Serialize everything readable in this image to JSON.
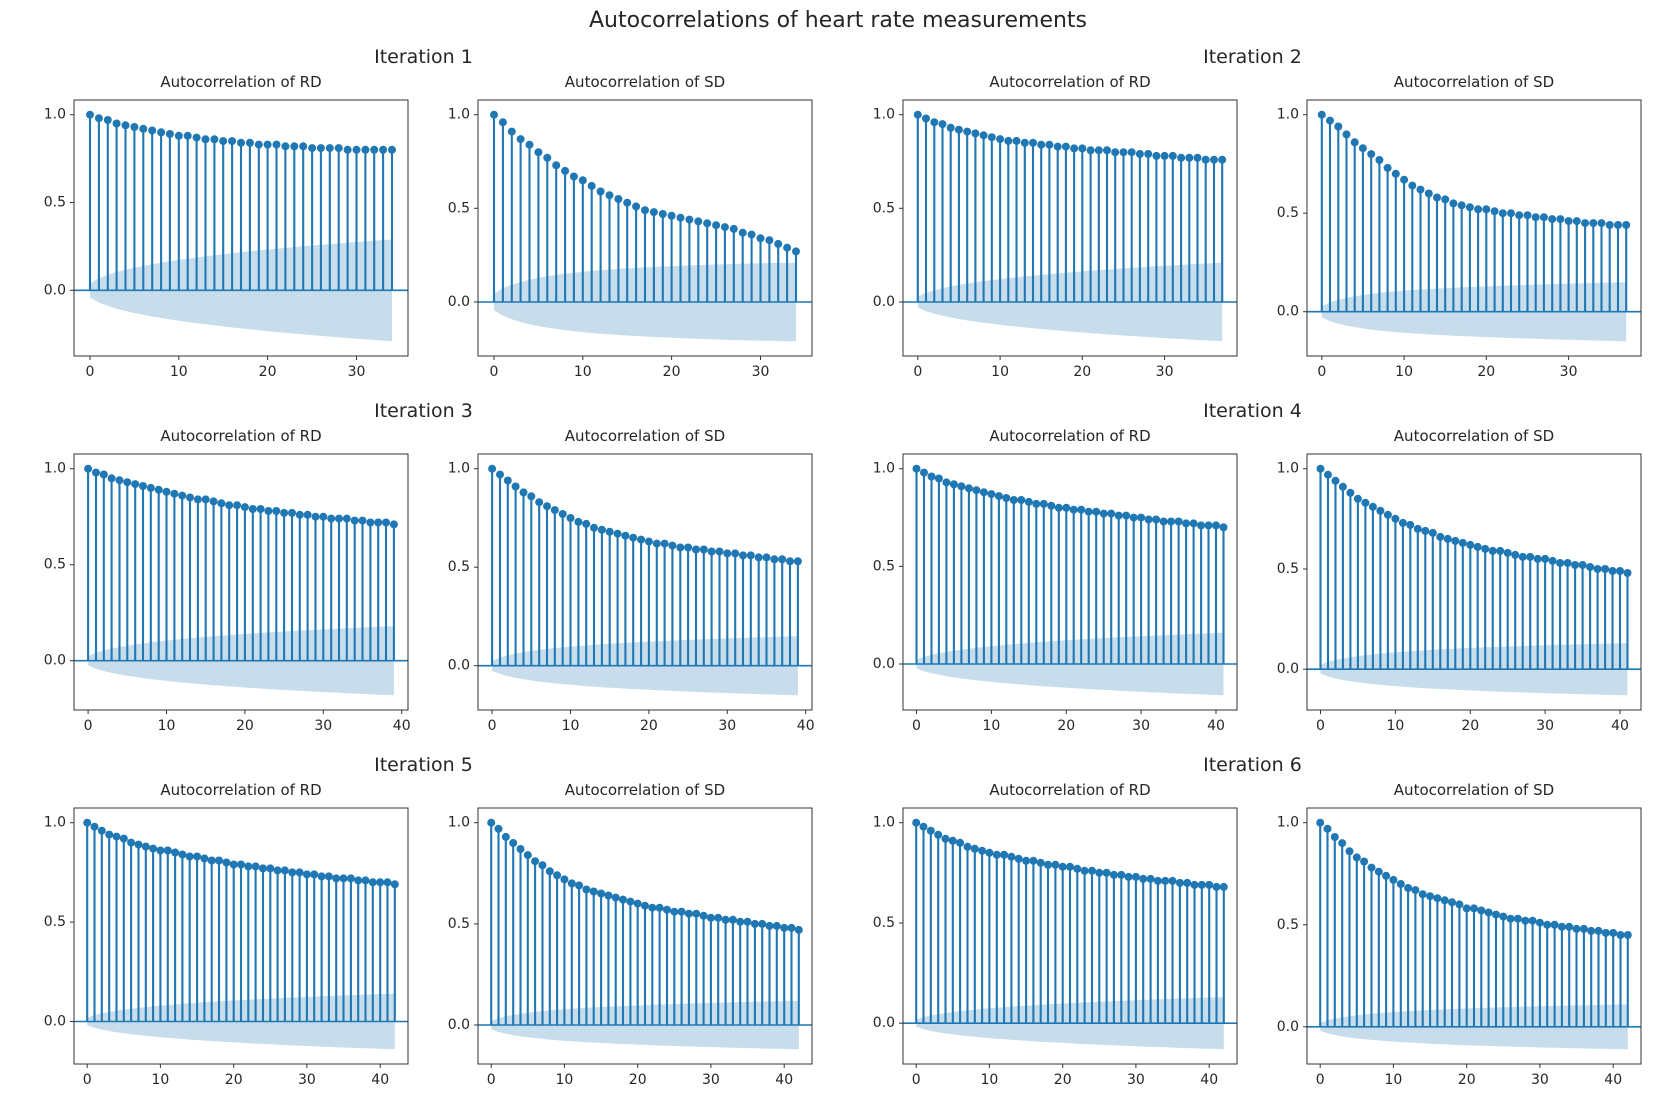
{
  "figure": {
    "title": "Autocorrelations of heart rate measurements"
  },
  "colors": {
    "accent": "#1f77b4",
    "band_fill": "#1f77b4",
    "band_opacity": 0.25,
    "spine": "#333333",
    "text": "#262626",
    "background": "#ffffff"
  },
  "axes": {
    "y_tick_labels": [
      "0.0",
      "0.5",
      "1.0"
    ],
    "y_tick_values": [
      0,
      0.5,
      1
    ]
  },
  "panels": [
    {
      "title": "Iteration 1",
      "charts": [
        0,
        1
      ]
    },
    {
      "title": "Iteration 2",
      "charts": [
        2,
        3
      ]
    },
    {
      "title": "Iteration 3",
      "charts": [
        4,
        5
      ]
    },
    {
      "title": "Iteration 4",
      "charts": [
        6,
        7
      ]
    },
    {
      "title": "Iteration 5",
      "charts": [
        8,
        9
      ]
    },
    {
      "title": "Iteration 6",
      "charts": [
        10,
        11
      ]
    }
  ],
  "chart_data": [
    {
      "type": "stem",
      "panel": "Iteration 1",
      "series": "RD",
      "title": "Autocorrelation of RD",
      "x_ticks": [
        0,
        10,
        20,
        30
      ],
      "y_ticks": [
        0,
        0.5,
        1
      ],
      "max_lag": 34,
      "band_end": 0.29,
      "acf": [
        1.0,
        0.98,
        0.97,
        0.95,
        0.94,
        0.93,
        0.92,
        0.91,
        0.9,
        0.89,
        0.88,
        0.88,
        0.87,
        0.86,
        0.86,
        0.85,
        0.85,
        0.84,
        0.84,
        0.83,
        0.83,
        0.83,
        0.82,
        0.82,
        0.82,
        0.81,
        0.81,
        0.81,
        0.81,
        0.8,
        0.8,
        0.8,
        0.8,
        0.8,
        0.8
      ]
    },
    {
      "type": "stem",
      "panel": "Iteration 1",
      "series": "SD",
      "title": "Autocorrelation of SD",
      "x_ticks": [
        0,
        10,
        20,
        30
      ],
      "y_ticks": [
        0,
        0.5,
        1
      ],
      "max_lag": 34,
      "band_end": 0.21,
      "acf": [
        1.0,
        0.96,
        0.91,
        0.87,
        0.84,
        0.8,
        0.77,
        0.73,
        0.7,
        0.67,
        0.65,
        0.62,
        0.59,
        0.57,
        0.55,
        0.53,
        0.51,
        0.49,
        0.48,
        0.47,
        0.46,
        0.45,
        0.44,
        0.43,
        0.42,
        0.41,
        0.4,
        0.39,
        0.37,
        0.36,
        0.34,
        0.33,
        0.31,
        0.29,
        0.27
      ]
    },
    {
      "type": "stem",
      "panel": "Iteration 2",
      "series": "RD",
      "title": "Autocorrelation of RD",
      "x_ticks": [
        0,
        10,
        20,
        30
      ],
      "y_ticks": [
        0,
        0.5,
        1
      ],
      "max_lag": 37,
      "band_end": 0.21,
      "acf": [
        1.0,
        0.98,
        0.96,
        0.95,
        0.93,
        0.92,
        0.91,
        0.9,
        0.89,
        0.88,
        0.87,
        0.86,
        0.86,
        0.85,
        0.85,
        0.84,
        0.84,
        0.83,
        0.83,
        0.82,
        0.82,
        0.81,
        0.81,
        0.81,
        0.8,
        0.8,
        0.8,
        0.79,
        0.79,
        0.78,
        0.78,
        0.78,
        0.77,
        0.77,
        0.77,
        0.76,
        0.76,
        0.76
      ]
    },
    {
      "type": "stem",
      "panel": "Iteration 2",
      "series": "SD",
      "title": "Autocorrelation of SD",
      "x_ticks": [
        0,
        10,
        20,
        30
      ],
      "y_ticks": [
        0,
        0.5,
        1
      ],
      "max_lag": 37,
      "band_end": 0.15,
      "acf": [
        1.0,
        0.97,
        0.94,
        0.9,
        0.86,
        0.83,
        0.8,
        0.77,
        0.73,
        0.7,
        0.67,
        0.64,
        0.62,
        0.6,
        0.58,
        0.57,
        0.55,
        0.54,
        0.53,
        0.52,
        0.52,
        0.51,
        0.5,
        0.5,
        0.49,
        0.49,
        0.48,
        0.48,
        0.47,
        0.47,
        0.46,
        0.46,
        0.45,
        0.45,
        0.45,
        0.44,
        0.44,
        0.44
      ]
    },
    {
      "type": "stem",
      "panel": "Iteration 3",
      "series": "RD",
      "title": "Autocorrelation of RD",
      "x_ticks": [
        0,
        10,
        20,
        30,
        40
      ],
      "y_ticks": [
        0,
        0.5,
        1
      ],
      "max_lag": 39,
      "band_end": 0.18,
      "acf": [
        1.0,
        0.98,
        0.97,
        0.95,
        0.94,
        0.93,
        0.92,
        0.91,
        0.9,
        0.89,
        0.88,
        0.87,
        0.86,
        0.85,
        0.84,
        0.84,
        0.83,
        0.82,
        0.81,
        0.81,
        0.8,
        0.79,
        0.79,
        0.78,
        0.78,
        0.77,
        0.77,
        0.76,
        0.76,
        0.75,
        0.75,
        0.74,
        0.74,
        0.74,
        0.73,
        0.73,
        0.72,
        0.72,
        0.72,
        0.71
      ]
    },
    {
      "type": "stem",
      "panel": "Iteration 3",
      "series": "SD",
      "title": "Autocorrelation of SD",
      "x_ticks": [
        0,
        10,
        20,
        30,
        40
      ],
      "y_ticks": [
        0,
        0.5,
        1
      ],
      "max_lag": 39,
      "band_end": 0.15,
      "acf": [
        1.0,
        0.97,
        0.94,
        0.91,
        0.88,
        0.86,
        0.83,
        0.81,
        0.79,
        0.77,
        0.75,
        0.73,
        0.72,
        0.7,
        0.69,
        0.68,
        0.67,
        0.66,
        0.65,
        0.64,
        0.63,
        0.62,
        0.62,
        0.61,
        0.6,
        0.6,
        0.59,
        0.59,
        0.58,
        0.58,
        0.57,
        0.57,
        0.56,
        0.56,
        0.55,
        0.55,
        0.54,
        0.54,
        0.53,
        0.53
      ]
    },
    {
      "type": "stem",
      "panel": "Iteration 4",
      "series": "RD",
      "title": "Autocorrelation of RD",
      "x_ticks": [
        0,
        10,
        20,
        30,
        40
      ],
      "y_ticks": [
        0,
        0.5,
        1
      ],
      "max_lag": 41,
      "band_end": 0.16,
      "acf": [
        1.0,
        0.98,
        0.96,
        0.95,
        0.93,
        0.92,
        0.91,
        0.9,
        0.89,
        0.88,
        0.87,
        0.86,
        0.85,
        0.84,
        0.84,
        0.83,
        0.82,
        0.82,
        0.81,
        0.8,
        0.8,
        0.79,
        0.79,
        0.78,
        0.78,
        0.77,
        0.77,
        0.76,
        0.76,
        0.75,
        0.75,
        0.74,
        0.74,
        0.73,
        0.73,
        0.73,
        0.72,
        0.72,
        0.71,
        0.71,
        0.71,
        0.7
      ]
    },
    {
      "type": "stem",
      "panel": "Iteration 4",
      "series": "SD",
      "title": "Autocorrelation of SD",
      "x_ticks": [
        0,
        10,
        20,
        30,
        40
      ],
      "y_ticks": [
        0,
        0.5,
        1
      ],
      "max_lag": 41,
      "band_end": 0.13,
      "acf": [
        1.0,
        0.97,
        0.94,
        0.91,
        0.88,
        0.85,
        0.83,
        0.81,
        0.79,
        0.77,
        0.75,
        0.73,
        0.72,
        0.7,
        0.69,
        0.68,
        0.66,
        0.65,
        0.64,
        0.63,
        0.62,
        0.61,
        0.6,
        0.59,
        0.59,
        0.58,
        0.57,
        0.56,
        0.56,
        0.55,
        0.55,
        0.54,
        0.53,
        0.53,
        0.52,
        0.52,
        0.51,
        0.5,
        0.5,
        0.49,
        0.49,
        0.48
      ]
    },
    {
      "type": "stem",
      "panel": "Iteration 5",
      "series": "RD",
      "title": "Autocorrelation of RD",
      "x_ticks": [
        0,
        10,
        20,
        30,
        40
      ],
      "y_ticks": [
        0,
        0.5,
        1
      ],
      "max_lag": 42,
      "band_end": 0.14,
      "acf": [
        1.0,
        0.98,
        0.96,
        0.94,
        0.93,
        0.92,
        0.9,
        0.89,
        0.88,
        0.87,
        0.86,
        0.86,
        0.85,
        0.84,
        0.83,
        0.83,
        0.82,
        0.81,
        0.81,
        0.8,
        0.79,
        0.79,
        0.78,
        0.78,
        0.77,
        0.77,
        0.76,
        0.76,
        0.75,
        0.75,
        0.74,
        0.74,
        0.73,
        0.73,
        0.72,
        0.72,
        0.72,
        0.71,
        0.71,
        0.7,
        0.7,
        0.7,
        0.69
      ]
    },
    {
      "type": "stem",
      "panel": "Iteration 5",
      "series": "SD",
      "title": "Autocorrelation of SD",
      "x_ticks": [
        0,
        10,
        20,
        30,
        40
      ],
      "y_ticks": [
        0,
        0.5,
        1
      ],
      "max_lag": 42,
      "band_end": 0.12,
      "acf": [
        1.0,
        0.97,
        0.93,
        0.9,
        0.87,
        0.84,
        0.81,
        0.79,
        0.76,
        0.74,
        0.72,
        0.7,
        0.69,
        0.67,
        0.66,
        0.65,
        0.64,
        0.63,
        0.62,
        0.61,
        0.6,
        0.59,
        0.58,
        0.58,
        0.57,
        0.56,
        0.56,
        0.55,
        0.55,
        0.54,
        0.53,
        0.53,
        0.52,
        0.52,
        0.51,
        0.51,
        0.5,
        0.5,
        0.49,
        0.49,
        0.48,
        0.48,
        0.47
      ]
    },
    {
      "type": "stem",
      "panel": "Iteration 6",
      "series": "RD",
      "title": "Autocorrelation of RD",
      "x_ticks": [
        0,
        10,
        20,
        30,
        40
      ],
      "y_ticks": [
        0,
        0.5,
        1
      ],
      "max_lag": 42,
      "band_end": 0.13,
      "acf": [
        1.0,
        0.98,
        0.96,
        0.94,
        0.92,
        0.91,
        0.9,
        0.88,
        0.87,
        0.86,
        0.85,
        0.84,
        0.84,
        0.83,
        0.82,
        0.81,
        0.81,
        0.8,
        0.79,
        0.79,
        0.78,
        0.78,
        0.77,
        0.76,
        0.76,
        0.75,
        0.75,
        0.74,
        0.74,
        0.73,
        0.73,
        0.72,
        0.72,
        0.71,
        0.71,
        0.71,
        0.7,
        0.7,
        0.69,
        0.69,
        0.69,
        0.68,
        0.68
      ]
    },
    {
      "type": "stem",
      "panel": "Iteration 6",
      "series": "SD",
      "title": "Autocorrelation of SD",
      "x_ticks": [
        0,
        10,
        20,
        30,
        40
      ],
      "y_ticks": [
        0,
        0.5,
        1
      ],
      "max_lag": 42,
      "band_end": 0.11,
      "acf": [
        1.0,
        0.97,
        0.93,
        0.9,
        0.86,
        0.83,
        0.81,
        0.78,
        0.76,
        0.74,
        0.72,
        0.7,
        0.68,
        0.67,
        0.65,
        0.64,
        0.63,
        0.62,
        0.61,
        0.6,
        0.58,
        0.58,
        0.57,
        0.56,
        0.55,
        0.54,
        0.53,
        0.53,
        0.52,
        0.52,
        0.51,
        0.5,
        0.5,
        0.49,
        0.49,
        0.48,
        0.48,
        0.47,
        0.47,
        0.46,
        0.46,
        0.45,
        0.45
      ]
    }
  ]
}
